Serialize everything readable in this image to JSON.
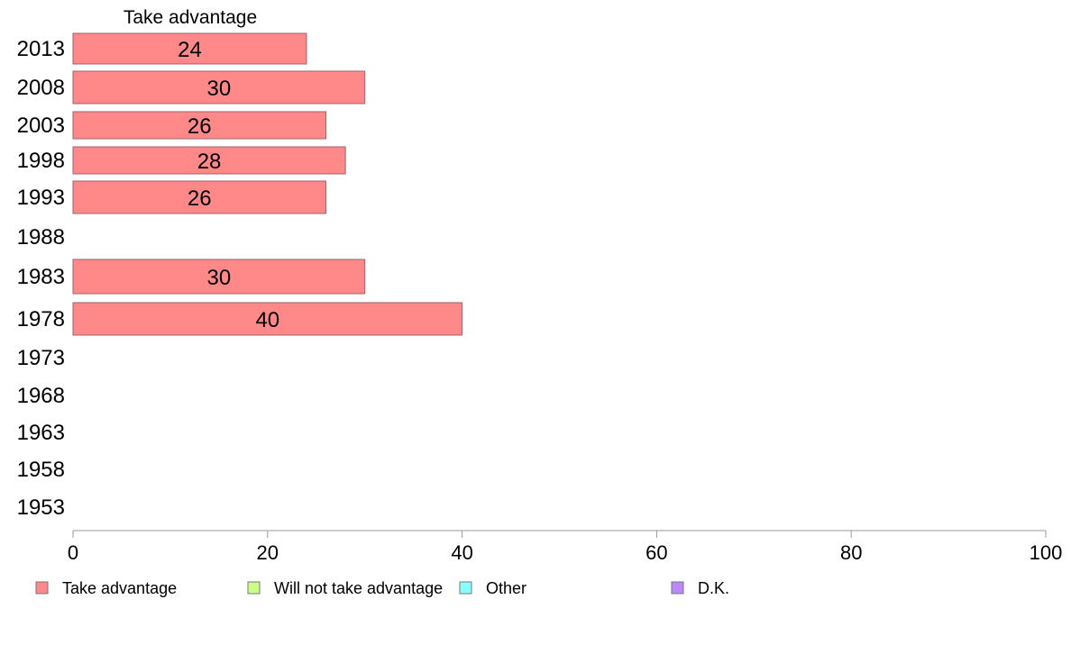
{
  "chart_data": {
    "type": "bar",
    "orientation": "horizontal",
    "title": "Take advantage",
    "categories": [
      "2013",
      "2008",
      "2003",
      "1998",
      "1993",
      "1988",
      "1983",
      "1978",
      "1973",
      "1968",
      "1963",
      "1958",
      "1953"
    ],
    "series": [
      {
        "name": "Take advantage",
        "color": "#ff8888",
        "values": [
          24,
          30,
          26,
          28,
          26,
          null,
          30,
          40,
          null,
          null,
          null,
          null,
          null
        ]
      }
    ],
    "xlim": [
      0,
      100
    ],
    "xticks": [
      0,
      20,
      40,
      60,
      80,
      100
    ],
    "legend": {
      "position": "bottom",
      "items": [
        {
          "label": "Take advantage",
          "color": "#ff8888"
        },
        {
          "label": "Will not take advantage",
          "color": "#ccff88"
        },
        {
          "label": "Other",
          "color": "#88ffff"
        },
        {
          "label": "D.K.",
          "color": "#bb88ff"
        }
      ]
    },
    "grid": false
  }
}
